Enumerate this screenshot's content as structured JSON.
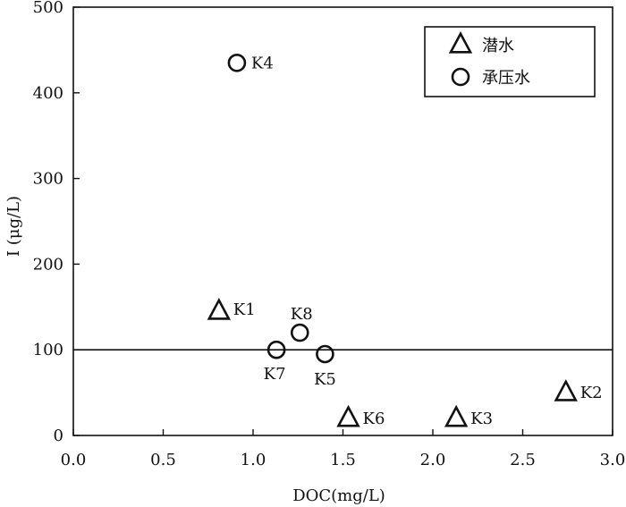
{
  "chart_data": {
    "type": "scatter",
    "xlabel": "DOC(mg/L)",
    "ylabel": "I (μg/L)",
    "xlim": [
      0.0,
      3.0
    ],
    "ylim": [
      0,
      500
    ],
    "x_ticks": [
      "0.0",
      "0.5",
      "1.0",
      "1.5",
      "2.0",
      "2.5",
      "3.0"
    ],
    "y_ticks": [
      "0",
      "100",
      "200",
      "300",
      "400",
      "500"
    ],
    "grid": false,
    "legend_position": "top-right",
    "reference_line_y": 100,
    "series": [
      {
        "name": "潜水",
        "marker": "triangle",
        "points": [
          {
            "label": "K1",
            "x": 0.81,
            "y": 145
          },
          {
            "label": "K2",
            "x": 2.74,
            "y": 50
          },
          {
            "label": "K3",
            "x": 2.13,
            "y": 20
          },
          {
            "label": "K6",
            "x": 1.53,
            "y": 20
          }
        ]
      },
      {
        "name": "承压水",
        "marker": "circle",
        "points": [
          {
            "label": "K4",
            "x": 0.91,
            "y": 435
          },
          {
            "label": "K5",
            "x": 1.4,
            "y": 95
          },
          {
            "label": "K7",
            "x": 1.13,
            "y": 100
          },
          {
            "label": "K8",
            "x": 1.26,
            "y": 120
          }
        ]
      }
    ]
  }
}
